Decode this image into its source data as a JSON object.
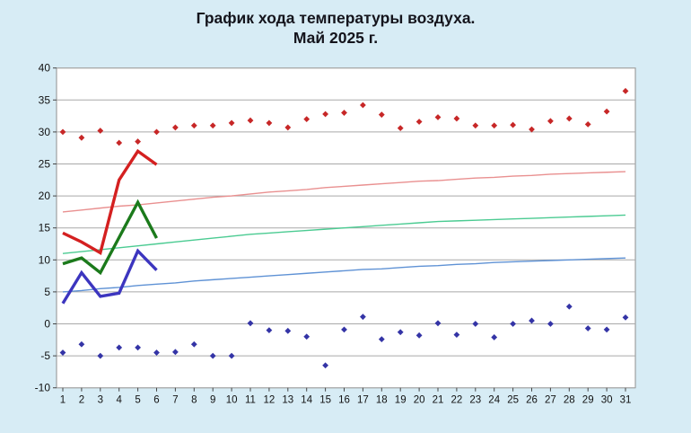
{
  "page": {
    "background": "#d7ecf5",
    "plot_background": "#ffffff",
    "grid_color": "#a9a9a9",
    "border_color": "#8f8f8f",
    "tick_color": "#444444"
  },
  "title": {
    "line1": "График хода температуры воздуха.",
    "line2": "Май 2025 г."
  },
  "chart_data": {
    "type": "line",
    "title": "График хода температуры воздуха. Май 2025 г.",
    "xlabel": "",
    "ylabel": "",
    "x": [
      1,
      2,
      3,
      4,
      5,
      6,
      7,
      8,
      9,
      10,
      11,
      12,
      13,
      14,
      15,
      16,
      17,
      18,
      19,
      20,
      21,
      22,
      23,
      24,
      25,
      26,
      27,
      28,
      29,
      30,
      31
    ],
    "ylim": [
      -10,
      40
    ],
    "y_ticks": [
      40,
      35,
      30,
      25,
      20,
      15,
      10,
      5,
      0,
      -5,
      -10
    ],
    "grid": "horizontal",
    "legend_position": "none",
    "series": [
      {
        "name": "record-max-daily",
        "draw": "scatter",
        "marker": "diamond",
        "color": "#c72727",
        "values": [
          30,
          29.1,
          30.2,
          28.3,
          28.5,
          30,
          30.7,
          31,
          31,
          31.4,
          31.8,
          31.4,
          30.7,
          32,
          32.8,
          33,
          34.2,
          32.7,
          30.6,
          31.6,
          32.3,
          32.1,
          31,
          31,
          31.1,
          30.4,
          31.7,
          32.1,
          31.2,
          33.2,
          36.4
        ]
      },
      {
        "name": "record-min-daily",
        "draw": "scatter",
        "marker": "diamond",
        "color": "#3434a6",
        "values": [
          -4.5,
          -3.2,
          -5,
          -3.7,
          -3.7,
          -4.5,
          -4.4,
          -3.2,
          -5,
          -5,
          0.1,
          -1,
          -1.1,
          -2,
          -6.5,
          -0.9,
          1.1,
          -2.4,
          -1.3,
          -1.8,
          0.1,
          -1.7,
          0,
          -2.1,
          0,
          0.5,
          0,
          2.7,
          -0.7,
          -0.9,
          1
        ]
      },
      {
        "name": "norm-max",
        "draw": "line",
        "stroke_width": 1.4,
        "color": "#e99090",
        "values": [
          17.5,
          17.8,
          18.1,
          18.4,
          18.6,
          18.9,
          19.2,
          19.5,
          19.8,
          20.0,
          20.3,
          20.6,
          20.8,
          21.0,
          21.3,
          21.5,
          21.7,
          21.9,
          22.1,
          22.3,
          22.4,
          22.6,
          22.8,
          22.9,
          23.1,
          23.2,
          23.4,
          23.5,
          23.6,
          23.7,
          23.8
        ]
      },
      {
        "name": "norm-mean",
        "draw": "line",
        "stroke_width": 1.4,
        "color": "#4bcb92",
        "values": [
          11.0,
          11.3,
          11.6,
          11.9,
          12.2,
          12.5,
          12.8,
          13.1,
          13.4,
          13.7,
          14.0,
          14.2,
          14.4,
          14.6,
          14.8,
          15.0,
          15.2,
          15.4,
          15.6,
          15.8,
          16.0,
          16.1,
          16.2,
          16.3,
          16.4,
          16.5,
          16.6,
          16.7,
          16.8,
          16.9,
          17.0
        ]
      },
      {
        "name": "norm-min",
        "draw": "line",
        "stroke_width": 1.4,
        "color": "#5f92d5",
        "values": [
          5.0,
          5.2,
          5.5,
          5.7,
          6.0,
          6.2,
          6.4,
          6.7,
          6.9,
          7.1,
          7.3,
          7.5,
          7.7,
          7.9,
          8.1,
          8.3,
          8.5,
          8.6,
          8.8,
          9.0,
          9.1,
          9.3,
          9.4,
          9.6,
          9.7,
          9.8,
          9.9,
          10.0,
          10.1,
          10.2,
          10.3
        ]
      },
      {
        "name": "actual-max",
        "draw": "line",
        "stroke_width": 3.4,
        "color": "#d42020",
        "values": [
          14.2,
          12.8,
          11.1,
          22.5,
          27.0,
          24.9
        ]
      },
      {
        "name": "actual-mean",
        "draw": "line",
        "stroke_width": 3.4,
        "color": "#1b7a1b",
        "values": [
          9.4,
          10.3,
          8.0,
          13.5,
          19.0,
          13.4
        ]
      },
      {
        "name": "actual-min",
        "draw": "line",
        "stroke_width": 3.4,
        "color": "#3c35bf",
        "values": [
          3.2,
          8.0,
          4.3,
          4.8,
          11.4,
          8.4
        ]
      }
    ]
  }
}
